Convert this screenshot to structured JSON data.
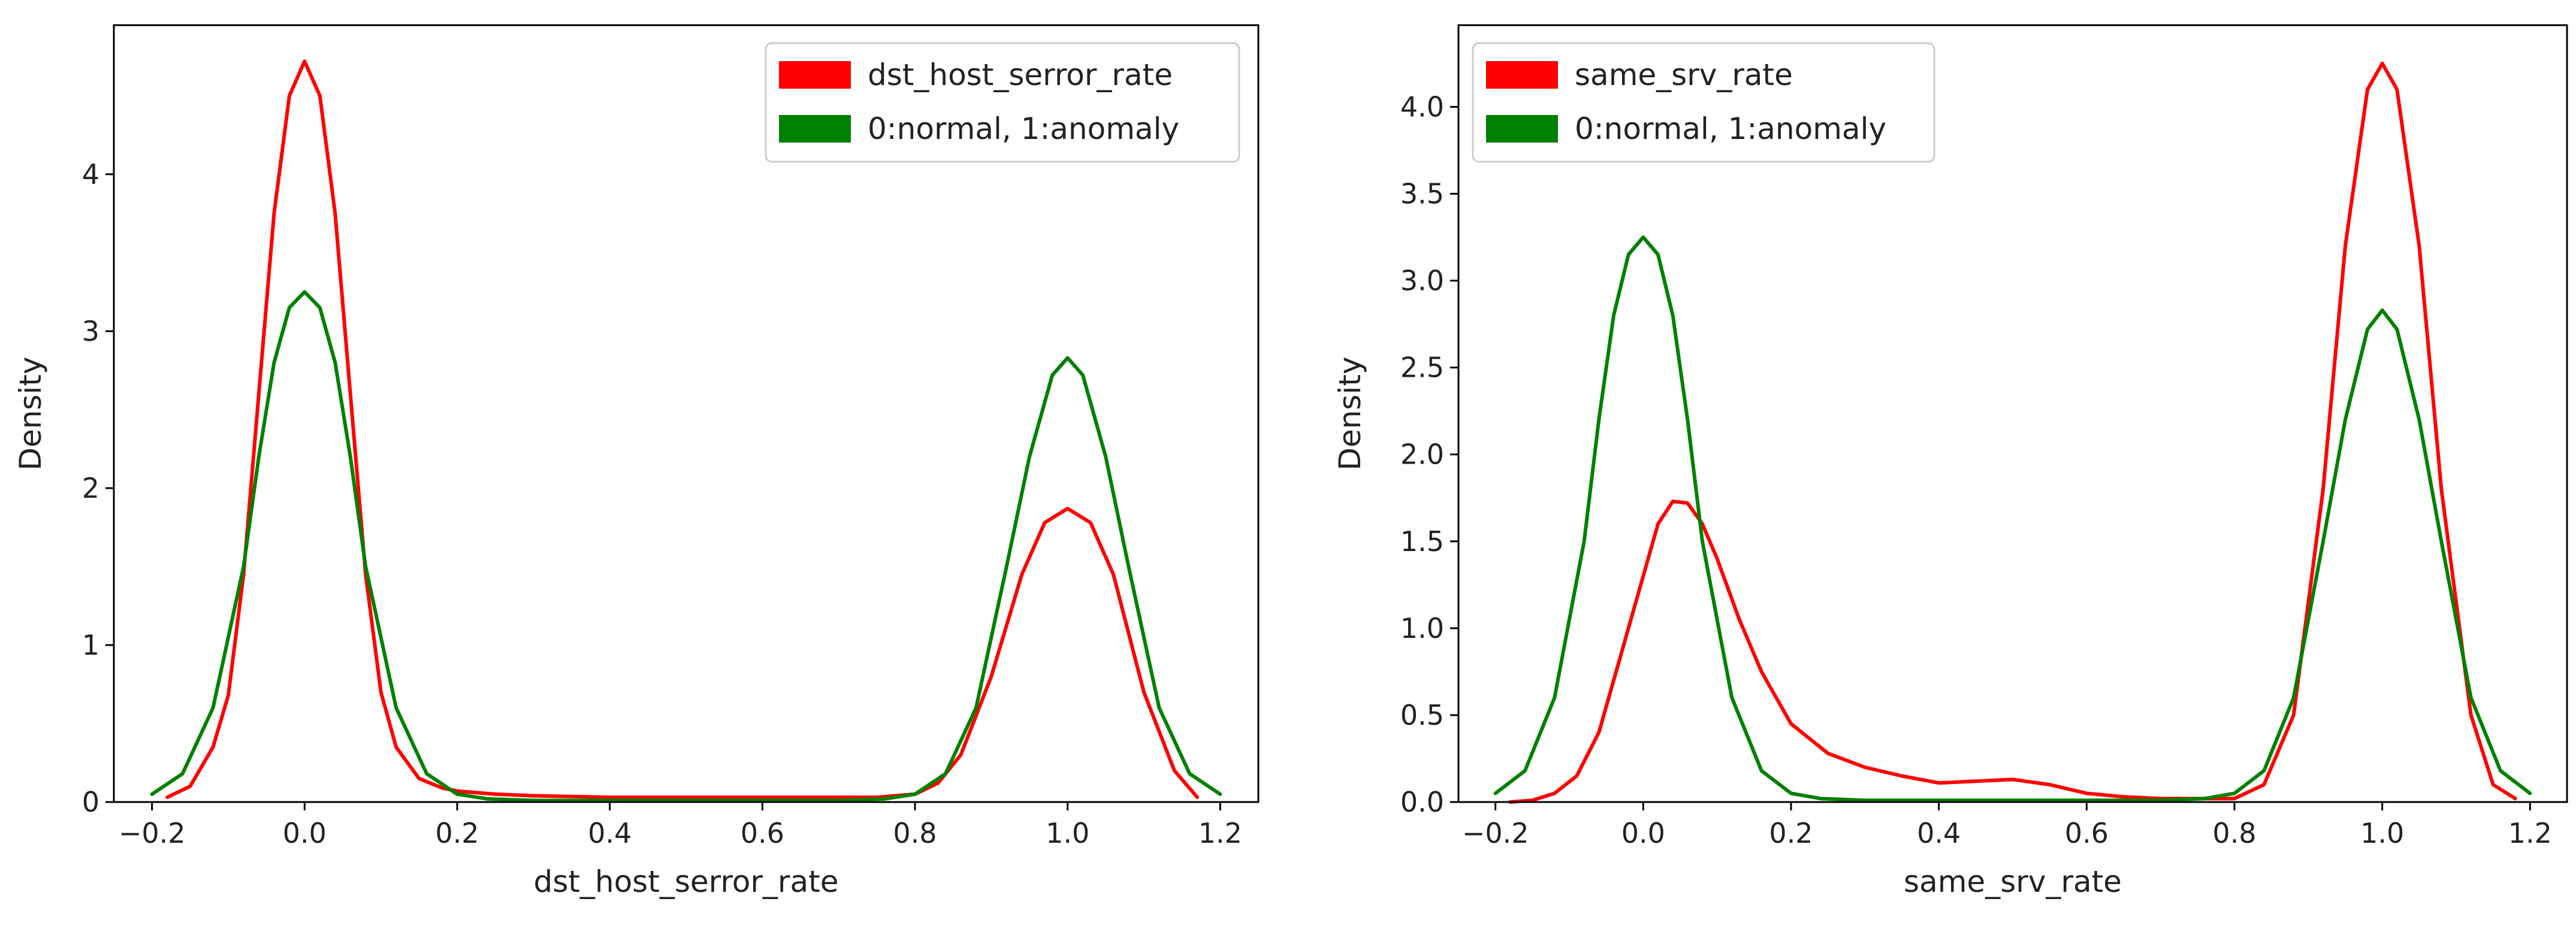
{
  "chart_data": [
    {
      "type": "line",
      "subtype": "kde",
      "title": "",
      "xlabel": "dst_host_serror_rate",
      "ylabel": "Density",
      "xlim": [
        -0.25,
        1.25
      ],
      "ylim": [
        0,
        4.95
      ],
      "xticks": [
        -0.2,
        0.0,
        0.2,
        0.4,
        0.6,
        0.8,
        1.0,
        1.2
      ],
      "xtick_labels": [
        "−0.2",
        "0.0",
        "0.2",
        "0.4",
        "0.6",
        "0.8",
        "1.0",
        "1.2"
      ],
      "yticks": [
        0,
        1,
        2,
        3,
        4
      ],
      "ytick_labels": [
        "0",
        "1",
        "2",
        "3",
        "4"
      ],
      "legend_position": "top-right",
      "series": [
        {
          "name": "dst_host_serror_rate",
          "color": "#ff0000",
          "x": [
            -0.18,
            -0.15,
            -0.12,
            -0.1,
            -0.08,
            -0.06,
            -0.04,
            -0.02,
            0.0,
            0.02,
            0.04,
            0.06,
            0.08,
            0.1,
            0.12,
            0.15,
            0.18,
            0.2,
            0.25,
            0.3,
            0.4,
            0.5,
            0.6,
            0.7,
            0.75,
            0.8,
            0.83,
            0.86,
            0.9,
            0.94,
            0.97,
            1.0,
            1.03,
            1.06,
            1.1,
            1.14,
            1.17
          ],
          "y": [
            0.03,
            0.1,
            0.35,
            0.68,
            1.45,
            2.6,
            3.75,
            4.5,
            4.72,
            4.5,
            3.75,
            2.6,
            1.45,
            0.7,
            0.35,
            0.15,
            0.09,
            0.07,
            0.05,
            0.04,
            0.03,
            0.03,
            0.03,
            0.03,
            0.03,
            0.05,
            0.12,
            0.3,
            0.8,
            1.45,
            1.78,
            1.87,
            1.78,
            1.45,
            0.7,
            0.2,
            0.03
          ]
        },
        {
          "name": "0:normal, 1:anomaly",
          "color": "#008000",
          "x": [
            -0.2,
            -0.16,
            -0.12,
            -0.08,
            -0.06,
            -0.04,
            -0.02,
            0.0,
            0.02,
            0.04,
            0.06,
            0.08,
            0.12,
            0.16,
            0.2,
            0.24,
            0.3,
            0.5,
            0.7,
            0.76,
            0.8,
            0.84,
            0.88,
            0.92,
            0.95,
            0.98,
            1.0,
            1.02,
            1.05,
            1.08,
            1.12,
            1.16,
            1.2
          ],
          "y": [
            0.05,
            0.18,
            0.6,
            1.5,
            2.2,
            2.8,
            3.15,
            3.25,
            3.15,
            2.8,
            2.2,
            1.5,
            0.6,
            0.18,
            0.05,
            0.02,
            0.01,
            0.01,
            0.01,
            0.02,
            0.05,
            0.18,
            0.6,
            1.5,
            2.2,
            2.72,
            2.83,
            2.72,
            2.2,
            1.5,
            0.6,
            0.18,
            0.05
          ]
        }
      ]
    },
    {
      "type": "line",
      "subtype": "kde",
      "title": "",
      "xlabel": "same_srv_rate",
      "ylabel": "Density",
      "xlim": [
        -0.25,
        1.25
      ],
      "ylim": [
        0,
        4.47
      ],
      "xticks": [
        -0.2,
        0.0,
        0.2,
        0.4,
        0.6,
        0.8,
        1.0,
        1.2
      ],
      "xtick_labels": [
        "−0.2",
        "0.0",
        "0.2",
        "0.4",
        "0.6",
        "0.8",
        "1.0",
        "1.2"
      ],
      "yticks": [
        0,
        0.5,
        1.0,
        1.5,
        2.0,
        2.5,
        3.0,
        3.5,
        4.0
      ],
      "ytick_labels": [
        "0.0",
        "0.5",
        "1.0",
        "1.5",
        "2.0",
        "2.5",
        "3.0",
        "3.5",
        "4.0"
      ],
      "legend_position": "top-left",
      "series": [
        {
          "name": "same_srv_rate",
          "color": "#ff0000",
          "x": [
            -0.18,
            -0.15,
            -0.12,
            -0.09,
            -0.06,
            -0.03,
            0.0,
            0.02,
            0.04,
            0.06,
            0.08,
            0.1,
            0.13,
            0.16,
            0.2,
            0.25,
            0.3,
            0.35,
            0.4,
            0.45,
            0.5,
            0.55,
            0.6,
            0.65,
            0.7,
            0.75,
            0.8,
            0.84,
            0.88,
            0.92,
            0.95,
            0.98,
            1.0,
            1.02,
            1.05,
            1.08,
            1.12,
            1.15,
            1.18
          ],
          "y": [
            0.0,
            0.01,
            0.05,
            0.15,
            0.4,
            0.85,
            1.3,
            1.6,
            1.73,
            1.72,
            1.6,
            1.4,
            1.05,
            0.75,
            0.45,
            0.28,
            0.2,
            0.15,
            0.11,
            0.12,
            0.13,
            0.1,
            0.05,
            0.03,
            0.02,
            0.02,
            0.02,
            0.1,
            0.5,
            1.8,
            3.2,
            4.1,
            4.25,
            4.1,
            3.2,
            1.8,
            0.5,
            0.1,
            0.02
          ]
        },
        {
          "name": "0:normal, 1:anomaly",
          "color": "#008000",
          "x": [
            -0.2,
            -0.16,
            -0.12,
            -0.08,
            -0.06,
            -0.04,
            -0.02,
            0.0,
            0.02,
            0.04,
            0.06,
            0.08,
            0.12,
            0.16,
            0.2,
            0.24,
            0.3,
            0.5,
            0.7,
            0.76,
            0.8,
            0.84,
            0.88,
            0.92,
            0.95,
            0.98,
            1.0,
            1.02,
            1.05,
            1.08,
            1.12,
            1.16,
            1.2
          ],
          "y": [
            0.05,
            0.18,
            0.6,
            1.5,
            2.2,
            2.8,
            3.15,
            3.25,
            3.15,
            2.8,
            2.2,
            1.5,
            0.6,
            0.18,
            0.05,
            0.02,
            0.01,
            0.01,
            0.01,
            0.02,
            0.05,
            0.18,
            0.6,
            1.5,
            2.2,
            2.72,
            2.83,
            2.72,
            2.2,
            1.5,
            0.6,
            0.18,
            0.05
          ]
        }
      ]
    }
  ]
}
